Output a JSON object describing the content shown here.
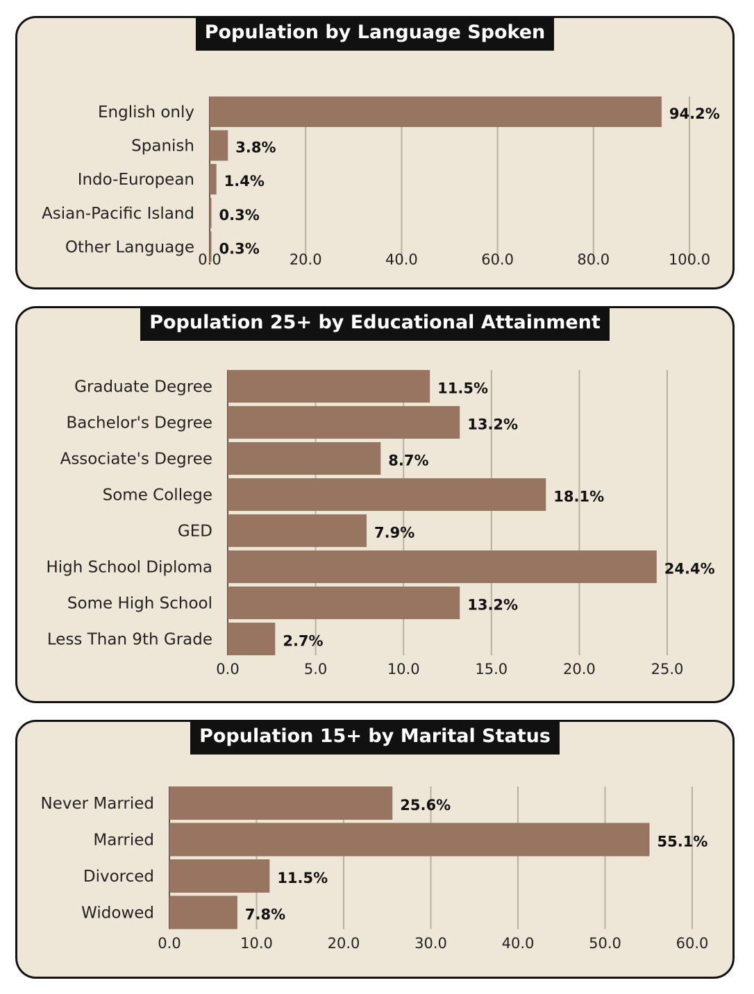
{
  "colors": {
    "panel_bg": "#eee7d7",
    "bar": "#977560",
    "grid": "#b8b0a2",
    "title_bg": "#111111",
    "title_text": "#ffffff"
  },
  "chart_data": [
    {
      "type": "bar",
      "orientation": "horizontal",
      "title": "Population by Language Spoken",
      "categories": [
        "English only",
        "Spanish",
        "Indo-European",
        "Asian-Pacific Island",
        "Other Language"
      ],
      "values": [
        94.2,
        3.8,
        1.4,
        0.3,
        0.3
      ],
      "value_labels": [
        "94.2%",
        "3.8%",
        "1.4%",
        "0.3%",
        "0.3%"
      ],
      "xticks": [
        "0.0",
        "20.0",
        "40.0",
        "60.0",
        "80.0",
        "100.0"
      ],
      "xlim": [
        0,
        100
      ],
      "grid": true
    },
    {
      "type": "bar",
      "orientation": "horizontal",
      "title": "Population 25+ by Educational Attainment",
      "categories": [
        "Graduate Degree",
        "Bachelor's Degree",
        "Associate's Degree",
        "Some College",
        "GED",
        "High School Diploma",
        "Some High School",
        "Less Than 9th Grade"
      ],
      "values": [
        11.5,
        13.2,
        8.7,
        18.1,
        7.9,
        24.4,
        13.2,
        2.7
      ],
      "value_labels": [
        "11.5%",
        "13.2%",
        "8.7%",
        "18.1%",
        "7.9%",
        "24.4%",
        "13.2%",
        "2.7%"
      ],
      "xticks": [
        "0.0",
        "5.0",
        "10.0",
        "15.0",
        "20.0",
        "25.0"
      ],
      "xlim": [
        0,
        25
      ],
      "grid": true
    },
    {
      "type": "bar",
      "orientation": "horizontal",
      "title": "Population 15+ by Marital Status",
      "categories": [
        "Never Married",
        "Married",
        "Divorced",
        "Widowed"
      ],
      "values": [
        25.6,
        55.1,
        11.5,
        7.8
      ],
      "value_labels": [
        "25.6%",
        "55.1%",
        "11.5%",
        "7.8%"
      ],
      "xticks": [
        "0.0",
        "10.0",
        "20.0",
        "30.0",
        "40.0",
        "50.0",
        "60.0"
      ],
      "xlim": [
        0,
        60
      ],
      "grid": true
    }
  ]
}
